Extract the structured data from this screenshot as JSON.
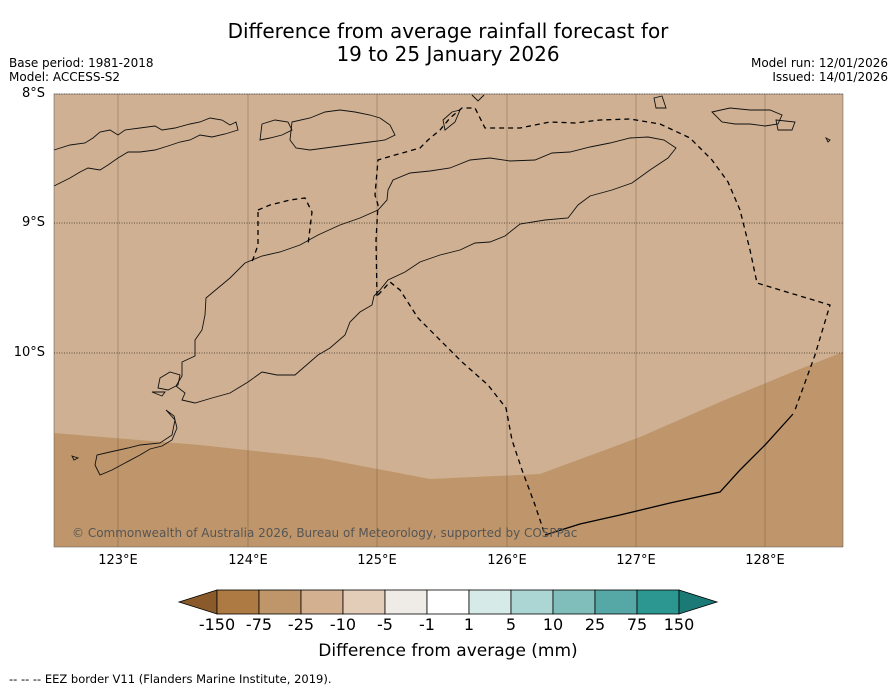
{
  "title_line1": "Difference from average rainfall forecast for",
  "title_line2": "19 to 25 January 2026",
  "meta_left": {
    "base_period": "Base period: 1981-2018",
    "model": "Model: ACCESS-S2"
  },
  "meta_right": {
    "model_run": "Model run: 12/01/2026",
    "issued": "Issued: 14/01/2026"
  },
  "latitudes": [
    "8°S",
    "9°S",
    "10°S"
  ],
  "longitudes": [
    "123°E",
    "124°E",
    "125°E",
    "126°E",
    "127°E",
    "128°E"
  ],
  "copyright": "© Commonwealth of Australia 2026, Bureau of Meteorology, supported by COSPPac",
  "colorbar": {
    "labels": [
      "-150",
      "-75",
      "-25",
      "-10",
      "-5",
      "-1",
      "1",
      "5",
      "10",
      "25",
      "75",
      "150"
    ],
    "colors": [
      "#8a5a2b",
      "#ad7a44",
      "#bf956a",
      "#d3b08f",
      "#e4cdb8",
      "#efebe6",
      "#ffffff",
      "#d6ebe7",
      "#acd6d4",
      "#80bebb",
      "#56a8a6",
      "#2c9690",
      "#1c7a76"
    ],
    "title": "Difference from average (mm)"
  },
  "map_colors": {
    "light_band": "#cfb092",
    "dark_band": "#bf966b"
  },
  "footnote": "-- -- -- EEZ border V11 (Flanders Marine Institute, 2019)."
}
